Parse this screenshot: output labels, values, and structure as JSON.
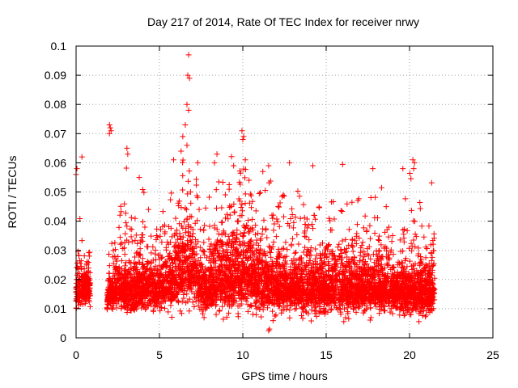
{
  "chart_data": {
    "type": "scatter",
    "title": "Day 217 of 2014, Rate Of TEC Index for receiver nrwy",
    "xlabel": "GPS time / hours",
    "ylabel": "ROTI / TECUs",
    "xlim": [
      0,
      25
    ],
    "ylim": [
      0,
      0.1
    ],
    "x_ticks": [
      0,
      5,
      10,
      15,
      20,
      25
    ],
    "x_tick_labels": [
      "0",
      "5",
      "10",
      "15",
      "20",
      "25"
    ],
    "y_ticks": [
      0,
      0.01,
      0.02,
      0.03,
      0.04,
      0.05,
      0.06,
      0.07,
      0.08,
      0.09,
      0.1
    ],
    "y_tick_labels": [
      "0",
      "0.01",
      "0.02",
      "0.03",
      "0.04",
      "0.05",
      "0.06",
      "0.07",
      "0.08",
      "0.09",
      "0.1"
    ],
    "grid": true,
    "marker": "+",
    "marker_color": "#ff0000",
    "series": [
      {
        "name": "ROTI",
        "profile_x": [
          0.0,
          0.2,
          0.4,
          0.8,
          1.5,
          1.9,
          2.2,
          2.6,
          3.0,
          3.4,
          3.8,
          4.2,
          4.6,
          5.0,
          5.4,
          5.8,
          6.2,
          6.6,
          6.8,
          7.0,
          7.3,
          7.6,
          8.0,
          8.4,
          8.8,
          9.2,
          9.6,
          10.0,
          10.4,
          10.8,
          11.2,
          11.6,
          12.0,
          12.4,
          12.8,
          13.2,
          13.6,
          14.0,
          14.4,
          14.8,
          15.2,
          15.6,
          16.0,
          16.4,
          16.8,
          17.2,
          17.6,
          18.0,
          18.4,
          18.8,
          19.2,
          19.6,
          20.0,
          20.4,
          20.8,
          21.1,
          21.5
        ],
        "profile_center": [
          0.014,
          0.015,
          0.016,
          0.016,
          0.0,
          0.014,
          0.015,
          0.016,
          0.016,
          0.015,
          0.016,
          0.017,
          0.016,
          0.016,
          0.017,
          0.018,
          0.02,
          0.022,
          0.024,
          0.022,
          0.019,
          0.016,
          0.016,
          0.018,
          0.019,
          0.02,
          0.02,
          0.021,
          0.02,
          0.019,
          0.018,
          0.017,
          0.017,
          0.016,
          0.016,
          0.016,
          0.016,
          0.016,
          0.016,
          0.016,
          0.016,
          0.016,
          0.016,
          0.016,
          0.016,
          0.016,
          0.016,
          0.016,
          0.016,
          0.016,
          0.015,
          0.015,
          0.015,
          0.015,
          0.015,
          0.015,
          0.015
        ],
        "profile_spread": [
          0.006,
          0.008,
          0.008,
          0.008,
          0.0,
          0.005,
          0.008,
          0.01,
          0.011,
          0.01,
          0.011,
          0.012,
          0.01,
          0.01,
          0.011,
          0.013,
          0.016,
          0.018,
          0.02,
          0.018,
          0.014,
          0.012,
          0.011,
          0.014,
          0.016,
          0.017,
          0.018,
          0.018,
          0.018,
          0.016,
          0.015,
          0.014,
          0.013,
          0.012,
          0.012,
          0.012,
          0.013,
          0.013,
          0.013,
          0.013,
          0.014,
          0.014,
          0.014,
          0.013,
          0.013,
          0.013,
          0.013,
          0.012,
          0.012,
          0.012,
          0.011,
          0.011,
          0.012,
          0.012,
          0.012,
          0.012,
          0.012
        ],
        "notable_points": [
          {
            "x": 6.75,
            "y": 0.097
          },
          {
            "x": 6.7,
            "y": 0.09
          },
          {
            "x": 6.8,
            "y": 0.089
          },
          {
            "x": 6.65,
            "y": 0.08
          },
          {
            "x": 6.75,
            "y": 0.078
          },
          {
            "x": 6.55,
            "y": 0.073
          },
          {
            "x": 6.4,
            "y": 0.069
          },
          {
            "x": 6.65,
            "y": 0.066
          },
          {
            "x": 6.3,
            "y": 0.064
          },
          {
            "x": 2.0,
            "y": 0.073
          },
          {
            "x": 2.05,
            "y": 0.072
          },
          {
            "x": 2.1,
            "y": 0.071
          },
          {
            "x": 2.0,
            "y": 0.07
          },
          {
            "x": 9.95,
            "y": 0.071
          },
          {
            "x": 10.05,
            "y": 0.069
          },
          {
            "x": 10.0,
            "y": 0.068
          },
          {
            "x": 20.2,
            "y": 0.061
          },
          {
            "x": 20.3,
            "y": 0.06
          },
          {
            "x": 20.25,
            "y": 0.058
          },
          {
            "x": 3.05,
            "y": 0.065
          },
          {
            "x": 3.1,
            "y": 0.063
          },
          {
            "x": 0.35,
            "y": 0.062
          },
          {
            "x": 0.05,
            "y": 0.058
          },
          {
            "x": 0.0,
            "y": 0.056
          },
          {
            "x": 8.45,
            "y": 0.063
          },
          {
            "x": 10.15,
            "y": 0.061
          },
          {
            "x": 8.3,
            "y": 0.06
          },
          {
            "x": 5.85,
            "y": 0.061
          },
          {
            "x": 7.3,
            "y": 0.06
          },
          {
            "x": 14.2,
            "y": 0.059
          },
          {
            "x": 11.55,
            "y": 0.059
          },
          {
            "x": 11.2,
            "y": 0.057
          },
          {
            "x": 9.45,
            "y": 0.059
          },
          {
            "x": 12.8,
            "y": 0.06
          },
          {
            "x": 17.8,
            "y": 0.058
          },
          {
            "x": 19.6,
            "y": 0.058
          },
          {
            "x": 11.6,
            "y": 0.003
          },
          {
            "x": 11.55,
            "y": 0.0025
          },
          {
            "x": 8.4,
            "y": 0.008
          }
        ],
        "n_points": 5600,
        "seed": 217
      }
    ]
  }
}
